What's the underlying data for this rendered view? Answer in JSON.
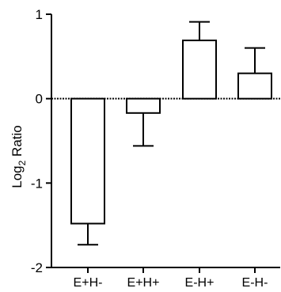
{
  "chart_data": {
    "type": "bar",
    "ylabel": "Log",
    "ylabel_subscript": "2",
    "ylabel_suffix": " Ratio",
    "ylim": [
      -2,
      1
    ],
    "yticks": [
      1,
      0,
      -1,
      -2
    ],
    "ytick_labels": [
      "1",
      "0",
      "-1",
      "-2"
    ],
    "categories": [
      "E+H-",
      "E+H+",
      "E-H+",
      "E-H-"
    ],
    "values": [
      -1.48,
      -0.17,
      0.69,
      0.3
    ],
    "errors": [
      0.25,
      0.39,
      0.22,
      0.3
    ],
    "grid": false,
    "bar_fill": "#ffffff",
    "bar_stroke": "#000000",
    "zero_line": "dotted"
  }
}
